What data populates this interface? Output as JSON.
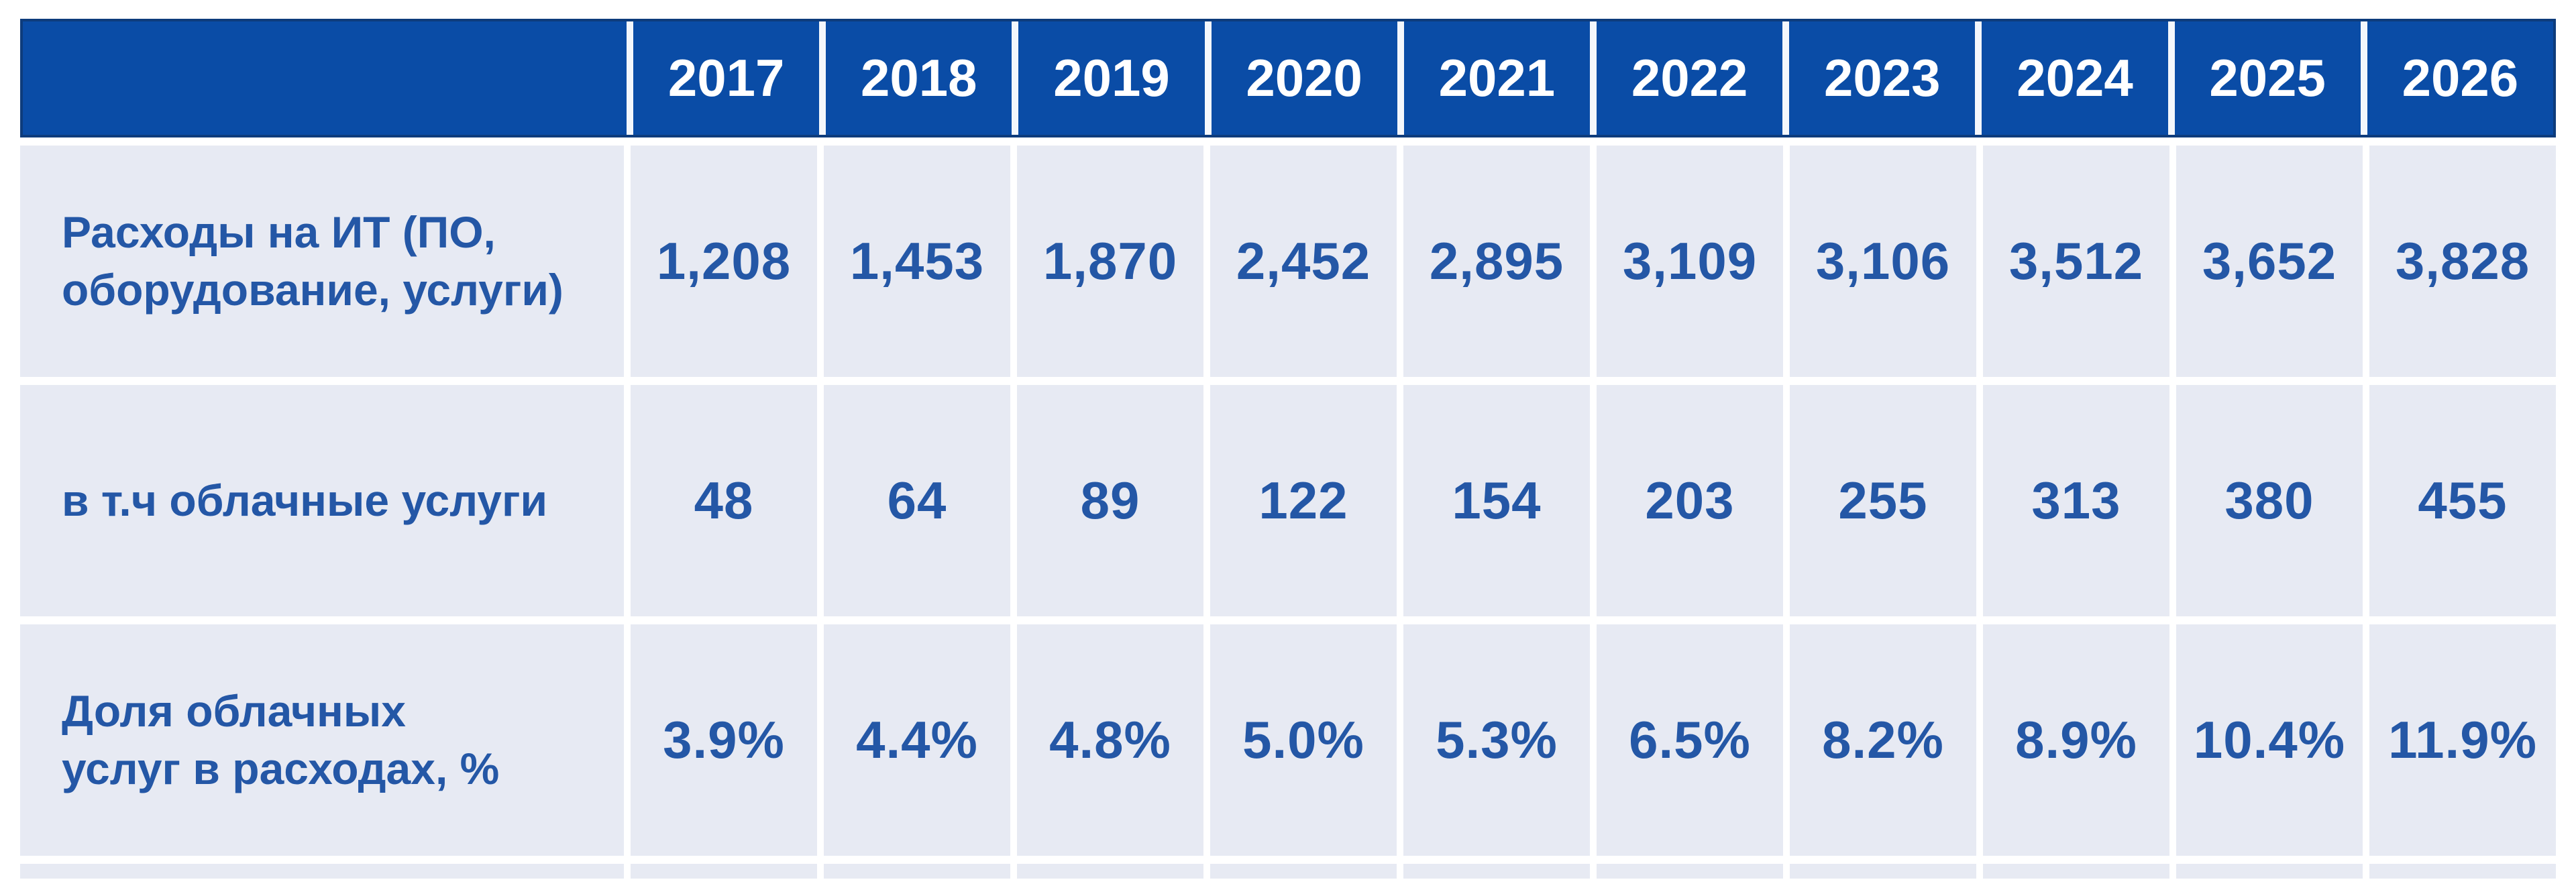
{
  "colors": {
    "header_bg": "#0a4ca6",
    "header_border": "#0e3c7c",
    "header_text": "#ffffff",
    "cell_bg": "#e7eaf3",
    "text_blue": "#2457a6"
  },
  "table": {
    "header": {
      "corner": "",
      "years": [
        "2017",
        "2018",
        "2019",
        "2020",
        "2021",
        "2022",
        "2023",
        "2024",
        "2025",
        "2026"
      ]
    },
    "rows": [
      {
        "label": "Расходы на ИТ (ПО,\nоборудование, услуги)",
        "values": [
          "1,208",
          "1,453",
          "1,870",
          "2,452",
          "2,895",
          "3,109",
          "3,106",
          "3,512",
          "3,652",
          "3,828"
        ]
      },
      {
        "label": "в т.ч облачные услуги",
        "values": [
          "48",
          "64",
          "89",
          "122",
          "154",
          "203",
          "255",
          "313",
          "380",
          "455"
        ]
      },
      {
        "label": "Доля облачных\nуслуг в расходах, %",
        "values": [
          "3.9%",
          "4.4%",
          "4.8%",
          "5.0%",
          "5.3%",
          "6.5%",
          "8.2%",
          "8.9%",
          "10.4%",
          "11.9%"
        ]
      }
    ]
  },
  "chart_data": {
    "type": "table",
    "categories": [
      2017,
      2018,
      2019,
      2020,
      2021,
      2022,
      2023,
      2024,
      2025,
      2026
    ],
    "series": [
      {
        "name": "Расходы на ИТ (ПО, оборудование, услуги)",
        "values": [
          1208,
          1453,
          1870,
          2452,
          2895,
          3109,
          3106,
          3512,
          3652,
          3828
        ]
      },
      {
        "name": "в т.ч облачные услуги",
        "values": [
          48,
          64,
          89,
          122,
          154,
          203,
          255,
          313,
          380,
          455
        ]
      },
      {
        "name": "Доля облачных услуг в расходах, %",
        "values": [
          3.9,
          4.4,
          4.8,
          5.0,
          5.3,
          6.5,
          8.2,
          8.9,
          10.4,
          11.9
        ],
        "unit": "%"
      }
    ],
    "title": "",
    "legend_position": "none",
    "grid": "white-gaps-between-cells"
  }
}
